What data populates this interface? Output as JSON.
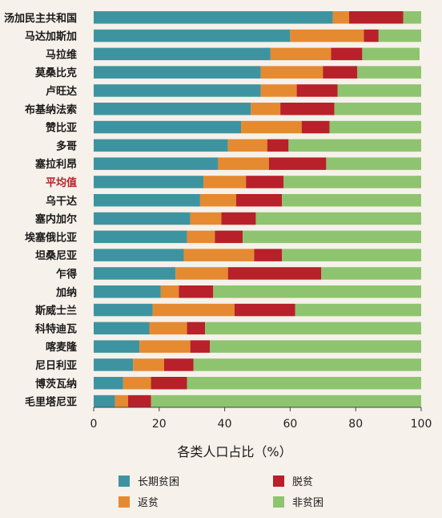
{
  "chart_data": {
    "type": "bar",
    "orientation": "horizontal",
    "stacked": true,
    "xlabel": "各类人口占比（%）",
    "xlim": [
      0,
      100
    ],
    "xticks": [
      0,
      20,
      40,
      60,
      80,
      100
    ],
    "grid": false,
    "legend_position": "bottom",
    "highlight_category": "平均值",
    "highlight_color": "#b8202a",
    "categories": [
      "汤加民主共和国",
      "马达加斯加",
      "马拉维",
      "莫桑比克",
      "卢旺达",
      "布基纳法索",
      "赞比亚",
      "多哥",
      "塞拉利昂",
      "平均值",
      "乌干达",
      "塞内加尔",
      "埃塞俄比亚",
      "坦桑尼亚",
      "乍得",
      "加纳",
      "斯威士兰",
      "科特迪瓦",
      "喀麦隆",
      "尼日利亚",
      "博茨瓦纳",
      "毛里塔尼亚"
    ],
    "series": [
      {
        "name": "长期贫困",
        "color": "#3d94a0",
        "values": [
          73,
          60,
          54,
          51,
          51,
          48,
          45,
          41,
          38,
          33.5,
          32.5,
          29.5,
          28.5,
          27.5,
          25,
          20.5,
          18,
          17,
          14,
          12,
          9,
          6.5
        ]
      },
      {
        "name": "返贫",
        "color": "#e58a30",
        "values": [
          5,
          22.5,
          18.5,
          19,
          11,
          9,
          18.5,
          12,
          15.5,
          13,
          11,
          9.5,
          8.5,
          21.5,
          16,
          5.5,
          25,
          11.5,
          15.5,
          9.5,
          8.5,
          4
        ]
      },
      {
        "name": "脱贫",
        "color": "#b8202a",
        "values": [
          16.5,
          4.5,
          9.5,
          10.5,
          12.5,
          16.5,
          8.5,
          6.5,
          17.5,
          11.5,
          14,
          10.5,
          8.5,
          8.5,
          28.5,
          10.5,
          18.5,
          5.5,
          6,
          9,
          11,
          7
        ]
      },
      {
        "name": "非贫困",
        "color": "#8ec46f",
        "values": [
          5.5,
          13,
          17.5,
          19.5,
          25.5,
          26.5,
          28,
          40.5,
          29,
          42,
          42.5,
          50.5,
          54.5,
          42.5,
          30.5,
          63.5,
          38.5,
          66,
          64.5,
          69.5,
          71.5,
          82.5
        ]
      }
    ]
  }
}
